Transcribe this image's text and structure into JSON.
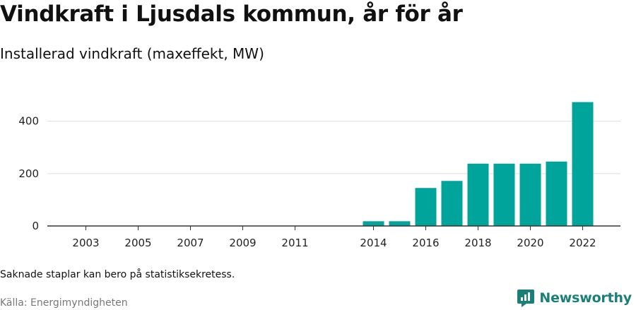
{
  "header": {
    "title": "Vindkraft i Ljusdals kommun, år för år",
    "subtitle": "Installerad vindkraft (maxeffekt, MW)"
  },
  "footer": {
    "note": "Saknade staplar kan bero på statistiksekretess.",
    "source": "Källa: Energimyndigheten",
    "brand": "Newsworthy"
  },
  "colors": {
    "bar": "#00a49a",
    "grid": "#dddddd",
    "axis": "#333333",
    "brand": "#1a7f78"
  },
  "chart_data": {
    "type": "bar",
    "title": "Vindkraft i Ljusdals kommun, år för år",
    "subtitle": "Installerad vindkraft (maxeffekt, MW)",
    "categories": [
      "2003",
      "2004",
      "2005",
      "2006",
      "2007",
      "2008",
      "2009",
      "2010",
      "2011",
      "2012",
      "2013",
      "2014",
      "2015",
      "2016",
      "2017",
      "2018",
      "2019",
      "2020",
      "2021",
      "2022"
    ],
    "values": [
      0,
      0,
      0,
      0,
      0,
      0,
      0,
      0,
      0,
      null,
      null,
      18,
      18,
      145,
      172,
      238,
      238,
      238,
      246,
      473
    ],
    "xticks": [
      "2003",
      "2005",
      "2007",
      "2009",
      "2011",
      "2014",
      "2016",
      "2018",
      "2020",
      "2022"
    ],
    "yticks": [
      0,
      200,
      400
    ],
    "ylim": [
      0,
      480
    ],
    "grid": true
  }
}
